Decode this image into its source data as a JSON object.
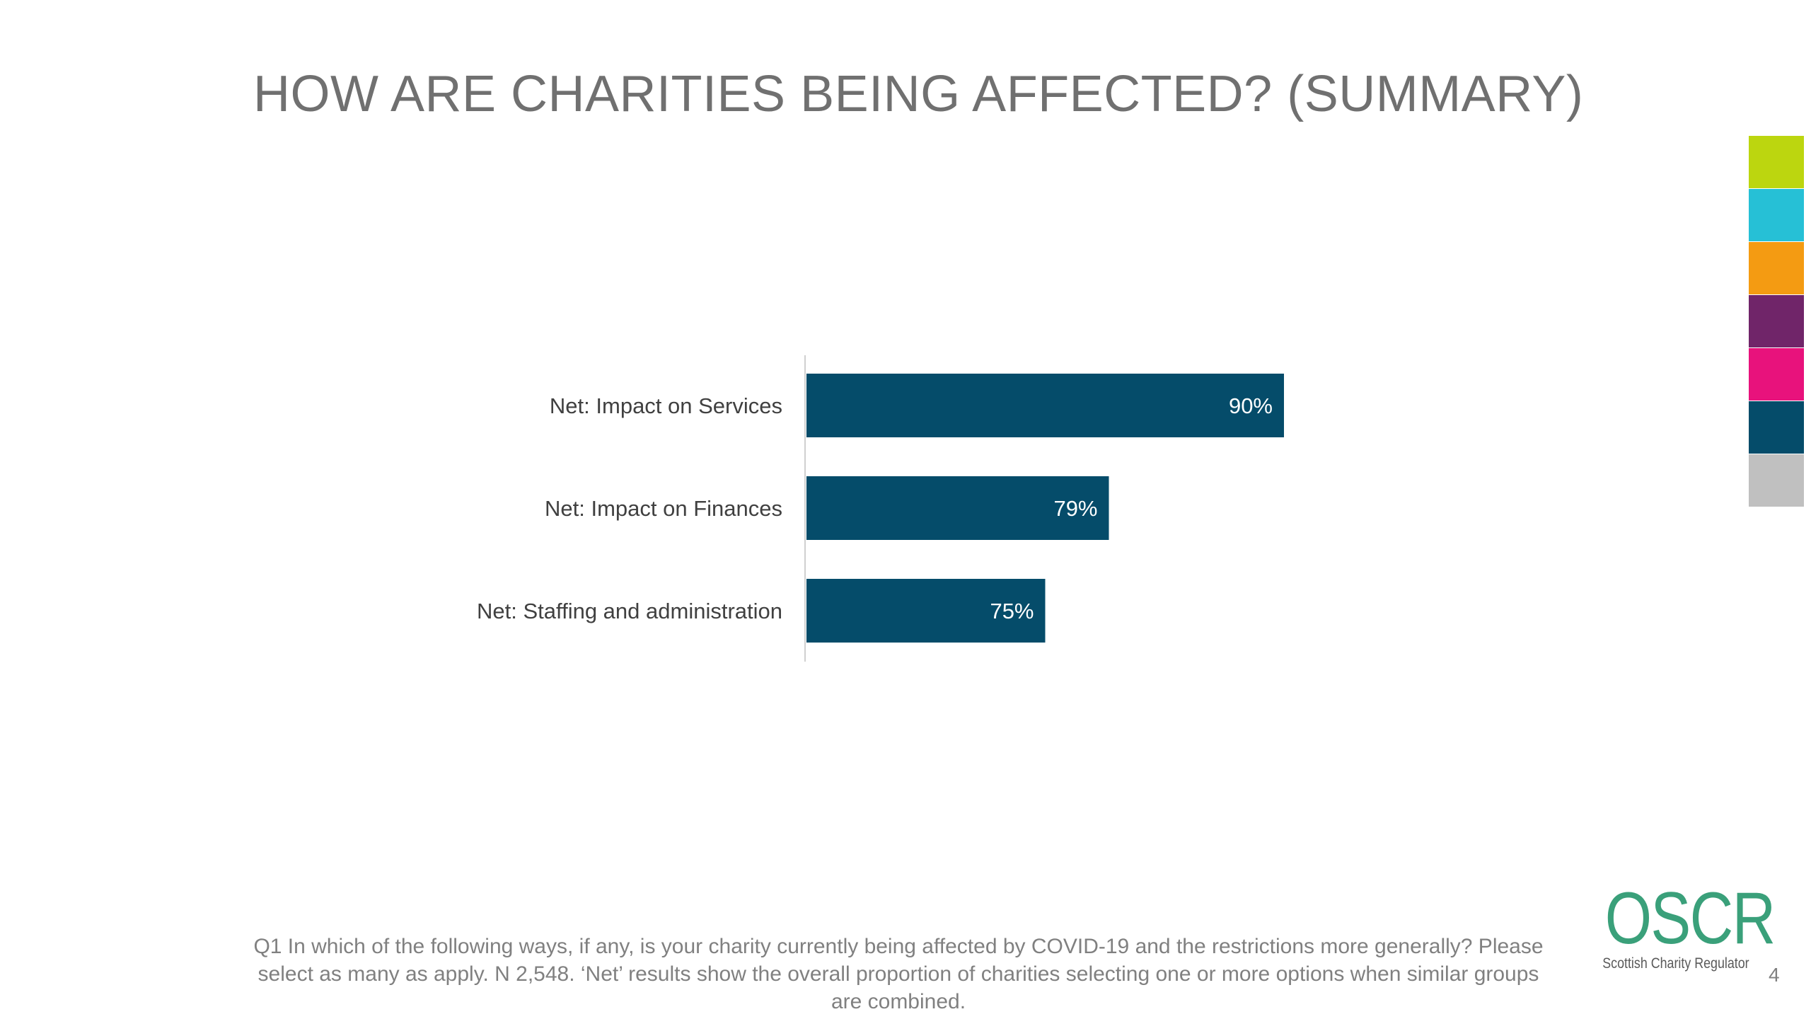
{
  "slide": {
    "title": "HOW ARE CHARITIES BEING AFFECTED? (SUMMARY)",
    "footnote": "Q1 In which of the following ways, if any, is your charity currently being affected by COVID-19 and the restrictions more generally? Please select as many as apply. N 2,548. ‘Net’ results show the overall proportion of charities selecting one or more options when similar groups are combined.",
    "page_number": "4"
  },
  "logo": {
    "mark": "OSCR",
    "subtitle": "Scottish Charity Regulator"
  },
  "color_strip": [
    "#bcd60f",
    "#26c0d6",
    "#f49b12",
    "#702569",
    "#e8127c",
    "#054c6a",
    "#c0c0c0"
  ],
  "chart_data": {
    "type": "bar",
    "orientation": "horizontal",
    "categories": [
      "Net: Impact on Services",
      "Net: Impact on Finances",
      "Net: Staffing and administration"
    ],
    "values": [
      90,
      79,
      75
    ],
    "data_labels": [
      "90%",
      "79%",
      "75%"
    ],
    "unit": "%",
    "xlim": [
      60,
      100
    ],
    "bar_color": "#054c6a",
    "grid": false,
    "legend": "none"
  }
}
